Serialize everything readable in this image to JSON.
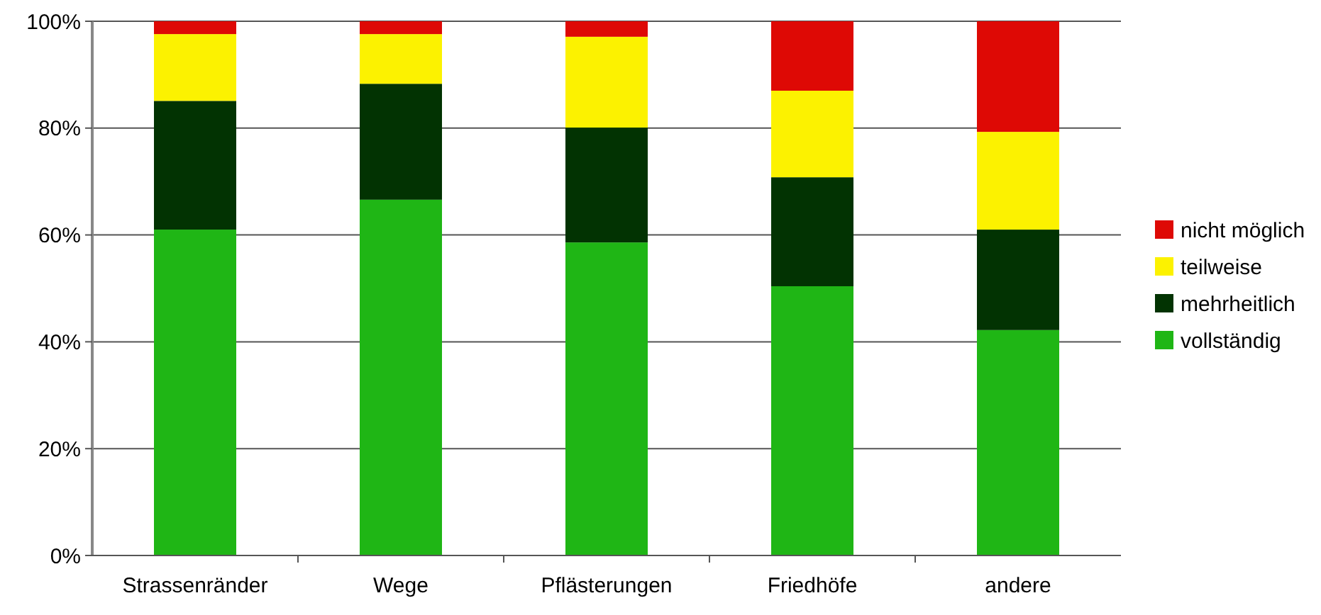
{
  "chart_data": {
    "type": "bar",
    "stacked": true,
    "categories": [
      "Strassenränder",
      "Wege",
      "Pflästerungen",
      "Friedhöfe",
      "andere"
    ],
    "series": [
      {
        "name": "vollständig",
        "color": "#1fb615",
        "values": [
          61,
          66.6,
          58.6,
          50.4,
          42.2
        ]
      },
      {
        "name": "mehrheitlich",
        "color": "#023302",
        "values": [
          24.1,
          21.7,
          21.5,
          20.4,
          18.8
        ]
      },
      {
        "name": "teilweise",
        "color": "#fcf200",
        "values": [
          12.5,
          9.3,
          17,
          16.2,
          18.3
        ]
      },
      {
        "name": "nicht möglich",
        "color": "#de0905",
        "values": [
          2.4,
          2.4,
          2.9,
          13,
          20.7
        ]
      }
    ],
    "ylim": [
      0,
      100
    ],
    "yticks": [
      {
        "value": 0,
        "label": "0%"
      },
      {
        "value": 20,
        "label": "20%"
      },
      {
        "value": 40,
        "label": "40%"
      },
      {
        "value": 60,
        "label": "60%"
      },
      {
        "value": 80,
        "label": "80%"
      },
      {
        "value": 100,
        "label": "100%"
      }
    ],
    "grid": "y",
    "legend": "right"
  }
}
